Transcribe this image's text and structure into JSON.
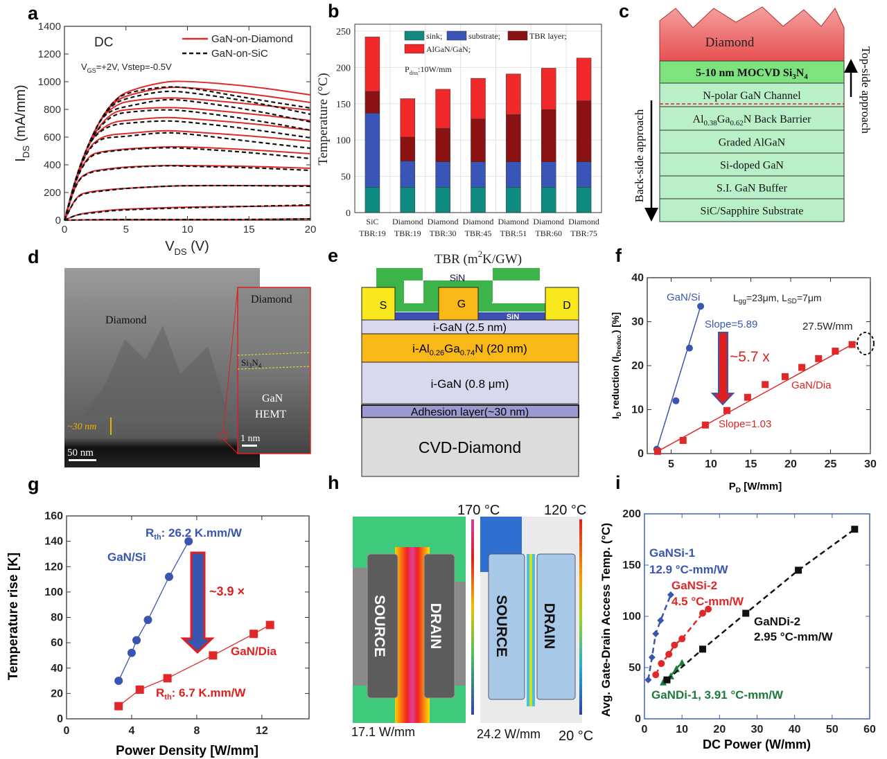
{
  "panel_labels": {
    "a": "a",
    "b": "b",
    "c": "c",
    "d": "d",
    "e": "e",
    "f": "f",
    "g": "g",
    "h": "h",
    "i": "i"
  },
  "chart_data": [
    {
      "panel": "a",
      "type": "line",
      "title": "",
      "annotation_dc": "DC",
      "annotation_bias": {
        "main": "V",
        "sub": "GS",
        "rest": "=+2V, Vstep=-0.5V"
      },
      "xlabel": {
        "main": "V",
        "sub": "DS",
        "unit": " (V)"
      },
      "ylabel": {
        "main": "I",
        "sub": "DS",
        "unit": " (mA/mm)"
      },
      "xlim": [
        0,
        20
      ],
      "ylim": [
        0,
        1400
      ],
      "xticks": [
        0,
        5,
        10,
        15,
        20
      ],
      "yticks": [
        0,
        200,
        400,
        600,
        800,
        1000,
        1200,
        1400
      ],
      "legend": "top-right",
      "grid": false,
      "x": [
        0,
        1,
        2,
        3,
        4,
        5,
        8,
        10,
        15,
        20
      ],
      "series": [
        {
          "name": "GaN-on-Diamond",
          "color": "#e02a2a",
          "style": "solid",
          "curves": [
            [
              0,
              330,
              560,
              740,
              860,
              930,
              1000,
              1005,
              970,
              905
            ],
            [
              0,
              330,
              560,
              740,
              850,
              900,
              960,
              960,
              915,
              850
            ],
            [
              0,
              330,
              560,
              740,
              820,
              860,
              885,
              880,
              840,
              795
            ],
            [
              0,
              330,
              560,
              700,
              780,
              800,
              815,
              810,
              770,
              720
            ],
            [
              0,
              330,
              560,
              660,
              710,
              720,
              745,
              735,
              700,
              650
            ],
            [
              0,
              330,
              530,
              600,
              620,
              625,
              650,
              640,
              610,
              570
            ],
            [
              0,
              320,
              470,
              495,
              505,
              515,
              530,
              530,
              510,
              480
            ],
            [
              0,
              290,
              350,
              365,
              375,
              385,
              395,
              395,
              390,
              375
            ],
            [
              0,
              180,
              205,
              215,
              225,
              230,
              245,
              250,
              250,
              250
            ],
            [
              0,
              40,
              55,
              65,
              75,
              80,
              90,
              95,
              100,
              105
            ],
            [
              0,
              2,
              3,
              4,
              5,
              5,
              5,
              5,
              5,
              10
            ]
          ]
        },
        {
          "name": "GaN-on-SiC",
          "color": "#111111",
          "style": "dashed",
          "curves": [
            [
              0,
              330,
              560,
              740,
              860,
              920,
              965,
              960,
              880,
              810
            ],
            [
              0,
              330,
              560,
              740,
              840,
              880,
              935,
              925,
              860,
              765
            ],
            [
              0,
              330,
              560,
              740,
              800,
              820,
              875,
              865,
              800,
              710
            ],
            [
              0,
              330,
              560,
              690,
              760,
              780,
              800,
              790,
              730,
              650
            ],
            [
              0,
              330,
              560,
              650,
              690,
              700,
              720,
              710,
              660,
              595
            ],
            [
              0,
              330,
              520,
              590,
              600,
              605,
              635,
              625,
              570,
              520
            ],
            [
              0,
              315,
              460,
              490,
              500,
              510,
              525,
              520,
              490,
              445
            ],
            [
              0,
              285,
              345,
              360,
              370,
              380,
              395,
              390,
              380,
              360
            ],
            [
              0,
              175,
              200,
              210,
              220,
              230,
              245,
              250,
              250,
              245
            ],
            [
              0,
              40,
              50,
              60,
              70,
              75,
              85,
              90,
              100,
              110
            ],
            [
              0,
              2,
              3,
              4,
              5,
              5,
              5,
              5,
              5,
              10
            ]
          ]
        }
      ]
    },
    {
      "panel": "b",
      "type": "bar",
      "stacked": true,
      "ylabel": "Temperature (°C)",
      "xlabel": {
        "main": "TBR (m",
        "sup": "2",
        "rest": "K/GW)"
      },
      "ylim": [
        0,
        250
      ],
      "yticks": [
        0,
        50,
        100,
        150,
        200,
        250
      ],
      "grid": true,
      "legend": "top",
      "annotation": {
        "main": "P",
        "sub": "diss",
        "rest": ":10W/mm"
      },
      "categories": [
        [
          "SiC",
          "TBR:19"
        ],
        [
          "Diamond",
          "TBR:19"
        ],
        [
          "Diamond",
          "TBR:30"
        ],
        [
          "Diamond",
          "TBR:45"
        ],
        [
          "Diamond",
          "TBR:51"
        ],
        [
          "Diamond",
          "TBR:60"
        ],
        [
          "Diamond",
          "TBR:75"
        ]
      ],
      "series": [
        {
          "name": "sink;",
          "color": "#0f8a80",
          "values": [
            35,
            35,
            35,
            35,
            35,
            35,
            35
          ]
        },
        {
          "name": "substrate;",
          "color": "#3a55b8",
          "values": [
            102,
            36,
            35,
            35,
            35,
            35,
            35
          ]
        },
        {
          "name": "TBR layer;",
          "color": "#8b1212",
          "values": [
            30,
            33,
            46,
            59,
            65,
            72,
            84
          ]
        },
        {
          "name": "AlGaN/GaN;",
          "color": "#f0282a",
          "values": [
            75,
            53,
            54,
            56,
            56,
            57,
            59
          ]
        }
      ]
    },
    {
      "panel": "f",
      "type": "scatter",
      "xlabel": {
        "main": "P",
        "sub": "D",
        "unit": " [W/mm]"
      },
      "ylabel": {
        "main": "I",
        "sub": "D",
        "mid": " reduction (I",
        "sub2": "Dreduc.",
        "unit": ") [%]"
      },
      "xlim": [
        2,
        30
      ],
      "ylim": [
        0,
        40
      ],
      "xticks": [
        5,
        10,
        15,
        20,
        25,
        30
      ],
      "yticks": [
        0,
        10,
        20,
        30,
        40
      ],
      "series": [
        {
          "name": "GaN/Si",
          "color": "#3a55b0",
          "marker": "circle",
          "fit": "line",
          "points": [
            [
              3.2,
              1
            ],
            [
              5.6,
              12
            ],
            [
              7.3,
              24
            ],
            [
              8.7,
              33.5
            ]
          ]
        },
        {
          "name": "GaN/Dia",
          "color": "#e02828",
          "marker": "square",
          "fit": "line",
          "points": [
            [
              3.3,
              0.5
            ],
            [
              6.5,
              3
            ],
            [
              9.3,
              6.5
            ],
            [
              12,
              9.8
            ],
            [
              14.6,
              12.8
            ],
            [
              16.8,
              15.7
            ],
            [
              19.3,
              17.5
            ],
            [
              21.4,
              19.6
            ],
            [
              23.5,
              21.6
            ],
            [
              25.6,
              23.3
            ],
            [
              27.7,
              24.8
            ]
          ]
        }
      ],
      "annotations": {
        "series1_label": "GaN/Si",
        "series2_label": "GaN/Dia",
        "geometry": {
          "a": "L",
          "as": "gg",
          "b": "=23μm, L",
          "bs": "SD",
          "c": "=7μm"
        },
        "slope1": "Slope=5.89",
        "slope2": "Slope=1.03",
        "ratio": "~5.7 x",
        "highlight": "27.5W/mm"
      }
    },
    {
      "panel": "g",
      "type": "scatter",
      "xlabel": "Power Density [W/mm]",
      "ylabel": "Temperature rise [K]",
      "xlim": [
        0,
        14.9
      ],
      "ylim": [
        0,
        160
      ],
      "xticks": [
        0,
        4,
        8,
        12
      ],
      "yticks": [
        0,
        20,
        40,
        60,
        80,
        100,
        120,
        140,
        160
      ],
      "series": [
        {
          "name": "GaN/Si",
          "color": "#3a55b0",
          "marker": "circle",
          "points": [
            [
              3.2,
              30
            ],
            [
              4,
              52
            ],
            [
              4.3,
              62
            ],
            [
              5,
              78
            ],
            [
              6.3,
              112
            ],
            [
              7.5,
              140
            ]
          ]
        },
        {
          "name": "GaN/Dia",
          "color": "#e02828",
          "marker": "square",
          "points": [
            [
              3.2,
              10
            ],
            [
              4.5,
              23
            ],
            [
              6.2,
              32
            ],
            [
              9,
              50
            ],
            [
              11.5,
              67
            ],
            [
              12.5,
              74
            ]
          ]
        }
      ],
      "annotations": {
        "rth1": {
          "main": "R",
          "sub": "th",
          "rest": ": 26.2 K.mm/W"
        },
        "rth2": {
          "main": "R",
          "sub": "th",
          "rest": ": 6.7 K.mm/W"
        },
        "series1_label": "GaN/Si",
        "series2_label": "GaN/Dia",
        "ratio": "~3.9 ×"
      }
    },
    {
      "panel": "i",
      "type": "scatter",
      "xlabel": "DC Power (W/mm)",
      "ylabel": "Avg. Gate-Drain Access Temp. (°C)",
      "xlim": [
        0,
        60
      ],
      "ylim": [
        0,
        200
      ],
      "xticks": [
        0,
        10,
        20,
        30,
        40,
        50,
        60
      ],
      "yticks": [
        0,
        50,
        100,
        150,
        200
      ],
      "series": [
        {
          "name": "GaNSi-1",
          "rth": "12.9 °C-mm/W",
          "color": "#3a55b0",
          "marker": "diamond",
          "points": [
            [
              1,
              38
            ],
            [
              2,
              60
            ],
            [
              3,
              83
            ],
            [
              4.3,
              96
            ],
            [
              7,
              121
            ]
          ]
        },
        {
          "name": "GaNSi-2",
          "rth": "4.5 °C-mm/W",
          "color": "#e02828",
          "marker": "circle",
          "points": [
            [
              3,
              43
            ],
            [
              4.5,
              54
            ],
            [
              6.5,
              63
            ],
            [
              8,
              72
            ],
            [
              10,
              78
            ],
            [
              15.5,
              103
            ],
            [
              17,
              107
            ]
          ]
        },
        {
          "name": "GaNDi-1",
          "rth": "GaNDi-1, 3.91 °C-mm/W",
          "color": "#1e7a3a",
          "marker": "triangle",
          "points": [
            [
              5,
              36
            ],
            [
              7,
              42
            ],
            [
              8.5,
              49
            ],
            [
              10,
              55
            ]
          ]
        },
        {
          "name": "GaNDi-2",
          "rth": "2.95 °C-mm/W",
          "color": "#111111",
          "marker": "square",
          "points": [
            [
              6,
              38
            ],
            [
              15.5,
              68
            ],
            [
              27,
              103
            ],
            [
              41,
              145
            ],
            [
              56,
              185
            ]
          ]
        }
      ]
    }
  ],
  "diagram_c": {
    "crown": "Diamond",
    "layers": [
      {
        "parts": [
          {
            "t": "5-10 nm MOCVD Si"
          },
          {
            "t": "3",
            "sub": true
          },
          {
            "t": "N"
          },
          {
            "t": "4",
            "sub": true
          }
        ],
        "color": "#7ee27e",
        "bold": true
      },
      {
        "parts": [
          {
            "t": "N-polar GaN Channel"
          }
        ],
        "color": "#b9f0c8"
      },
      {
        "parts": [
          {
            "t": "Al"
          },
          {
            "t": "0.38",
            "sub": true
          },
          {
            "t": "Ga"
          },
          {
            "t": "0.62",
            "sub": true
          },
          {
            "t": "N Back Barrier"
          }
        ],
        "color": "#b9f0c8"
      },
      {
        "parts": [
          {
            "t": "Graded AlGaN"
          }
        ],
        "color": "#b9f0c8"
      },
      {
        "parts": [
          {
            "t": "Si-doped GaN"
          }
        ],
        "color": "#b9f0c8"
      },
      {
        "parts": [
          {
            "t": "S.I. GaN Buffer"
          }
        ],
        "color": "#b9f0c8"
      },
      {
        "parts": [
          {
            "t": "SiC/Sapphire Substrate"
          }
        ],
        "color": "#b9f0c8"
      }
    ],
    "left_arrow": "Back-side approach",
    "right_arrow": "Top-side approach"
  },
  "image_d": {
    "label_diamond": "Diamond",
    "thickness": "~30 nm",
    "scale": "50 nm",
    "inset": {
      "diamond": "Diamond",
      "sin": {
        "main": "Si",
        "s1": "3",
        "mid": "N",
        "s2": "4"
      },
      "gan": "GaN",
      "hemt": "HEMT",
      "scale": "1 nm"
    }
  },
  "diagram_e": {
    "sin_top": "SiN",
    "sin_bottom": "SiN",
    "source": "S",
    "gate": "G",
    "drain": "D",
    "layer1": "i-GaN (2.5 nm)",
    "layer2": {
      "a": "i-Al",
      "s1": "0.26",
      "b": "Ga",
      "s2": "0.74",
      "c": "N (20 nm)"
    },
    "layer3": "i-GaN (0.8 μm)",
    "layer4": "Adhesion layer(~30 nm)",
    "layer5": "CVD-Diamond"
  },
  "image_h": {
    "left_max": "170 °C",
    "right_max": "120 °C",
    "min": "20 °C",
    "left_power": "17.1 W/mm",
    "right_power": "24.2 W/mm",
    "source": "SOURCE",
    "drain": "DRAIN"
  }
}
